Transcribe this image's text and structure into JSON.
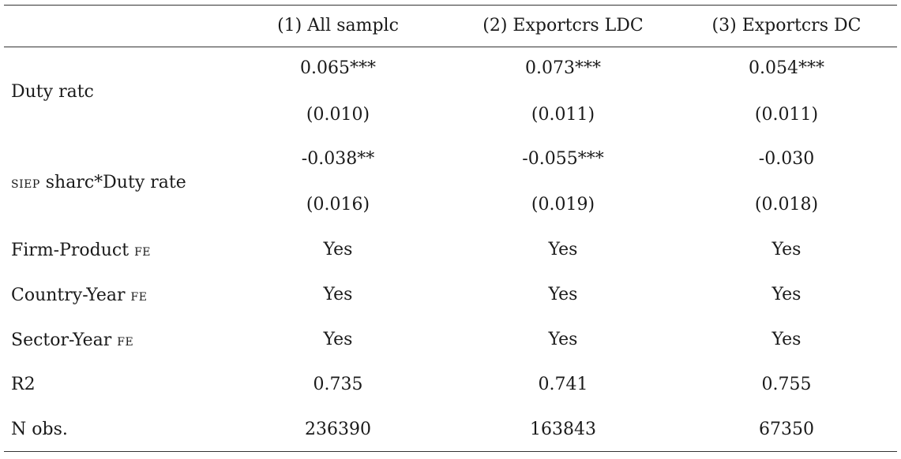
{
  "table": {
    "headers": [
      "",
      "(1) All samplc",
      "(2) Exportcrs LDC",
      "(3) Exportcrs DC"
    ],
    "rows": [
      {
        "label": "Duty ratc",
        "label_sc": "",
        "label_rest": "",
        "coef": [
          "0.065***",
          "0.073***",
          "0.054***"
        ],
        "se": [
          "(0.010)",
          "(0.011)",
          "(0.011)"
        ]
      },
      {
        "label": "",
        "label_sc": "SIEP",
        "label_rest": " sharc*Duty rate",
        "coef": [
          "-0.038**",
          "-0.055***",
          "-0.030"
        ],
        "se": [
          "(0.016)",
          "(0.019)",
          "(0.018)"
        ]
      },
      {
        "label": "Firm-Product ",
        "label_sc": "FE",
        "values": [
          "Yes",
          "Yes",
          "Yes"
        ]
      },
      {
        "label": "Country-Year ",
        "label_sc": "FE",
        "values": [
          "Yes",
          "Yes",
          "Yes"
        ]
      },
      {
        "label": "Sector-Year ",
        "label_sc": "FE",
        "values": [
          "Yes",
          "Yes",
          "Yes"
        ]
      },
      {
        "label": "R2",
        "values": [
          "0.735",
          "0.741",
          "0.755"
        ]
      },
      {
        "label": "N obs.",
        "values": [
          "236390",
          "163843",
          "67350"
        ]
      }
    ]
  }
}
